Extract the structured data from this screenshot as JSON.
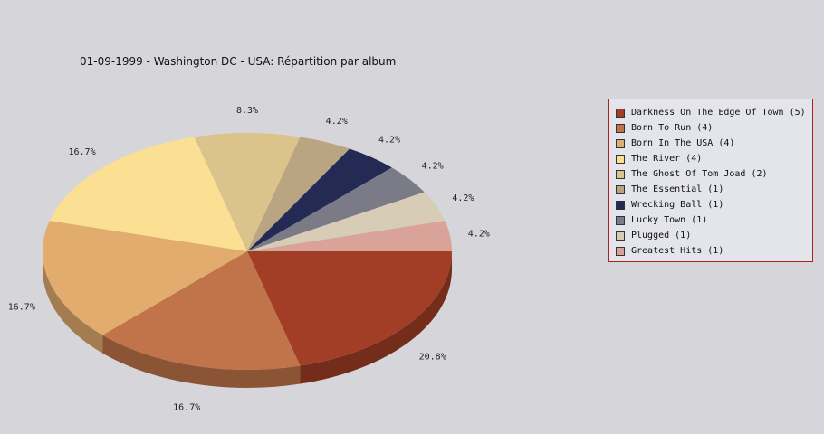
{
  "chart_data": {
    "type": "pie",
    "title": "01-09-1999 - Washington DC - USA:  Répartition par album",
    "slices": [
      {
        "label": "Darkness On The Edge Of Town (5)",
        "value": 5,
        "percent_label": "20.8%",
        "color": "#a23e26"
      },
      {
        "label": "Born To Run (4)",
        "value": 4,
        "percent_label": "16.7%",
        "color": "#c1744a"
      },
      {
        "label": "Born In The USA (4)",
        "value": 4,
        "percent_label": "16.7%",
        "color": "#e2ac6e"
      },
      {
        "label": "The River (4)",
        "value": 4,
        "percent_label": "16.7%",
        "color": "#fbdf93"
      },
      {
        "label": "The Ghost Of Tom Joad (2)",
        "value": 2,
        "percent_label": "8.3%",
        "color": "#dbc48b"
      },
      {
        "label": "The Essential (1)",
        "value": 1,
        "percent_label": "4.2%",
        "color": "#b9a581"
      },
      {
        "label": "Wrecking Ball (1)",
        "value": 1,
        "percent_label": "4.2%",
        "color": "#232a54"
      },
      {
        "label": "Lucky Town (1)",
        "value": 1,
        "percent_label": "4.2%",
        "color": "#7b7b88"
      },
      {
        "label": "Plugged (1)",
        "value": 1,
        "percent_label": "4.2%",
        "color": "#d7ccb6"
      },
      {
        "label": "Greatest Hits (1)",
        "value": 1,
        "percent_label": "4.2%",
        "color": "#d9a39a"
      }
    ],
    "legend_position": "right",
    "style": "3d-pie"
  }
}
